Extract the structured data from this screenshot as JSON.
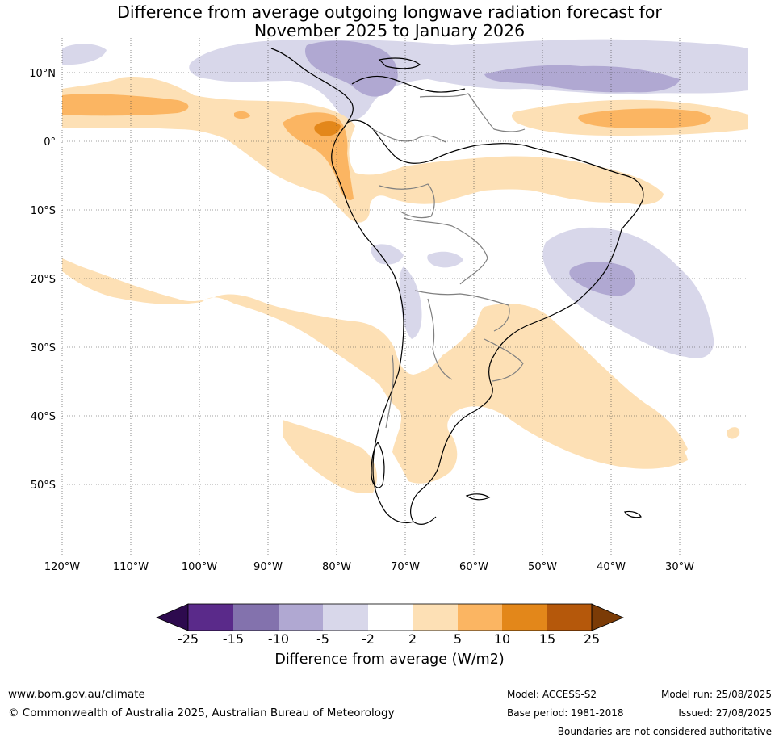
{
  "title": {
    "line1": "Difference from average outgoing longwave radiation forecast for",
    "line2": "November 2025 to January 2026"
  },
  "map": {
    "lat_labels": [
      "10°N",
      "0°",
      "10°S",
      "20°S",
      "30°S",
      "40°S",
      "50°S"
    ],
    "lon_labels": [
      "120°W",
      "110°W",
      "100°W",
      "90°W",
      "80°W",
      "70°W",
      "60°W",
      "50°W",
      "40°W",
      "30°W"
    ]
  },
  "colorbar": {
    "ticks": [
      "-25",
      "-15",
      "-10",
      "-5",
      "-2",
      "2",
      "5",
      "10",
      "15",
      "25"
    ],
    "colors": {
      "lt_m25": "#2d0a4e",
      "m25_m15": "#5a2a8a",
      "m15_m10": "#8372ad",
      "m10_m5": "#b0a8d2",
      "m5_m2": "#d8d7ea",
      "m2_2": "#ffffff",
      "p2_5": "#fde0b5",
      "p5_10": "#fbb562",
      "p10_15": "#e3871a",
      "p15_25": "#b5580b",
      "gt_25": "#7b3b06"
    },
    "label": "Difference from average (W/m2)"
  },
  "footer": {
    "url": "www.bom.gov.au/climate",
    "copyright": "© Commonwealth of Australia 2025, Australian Bureau of Meteorology",
    "model": "Model: ACCESS-S2",
    "model_run": "Model run: 25/08/2025",
    "base_period": "Base period: 1981-2018",
    "issued": "Issued: 27/08/2025",
    "disclaimer": "Boundaries are not considered authoritative"
  }
}
